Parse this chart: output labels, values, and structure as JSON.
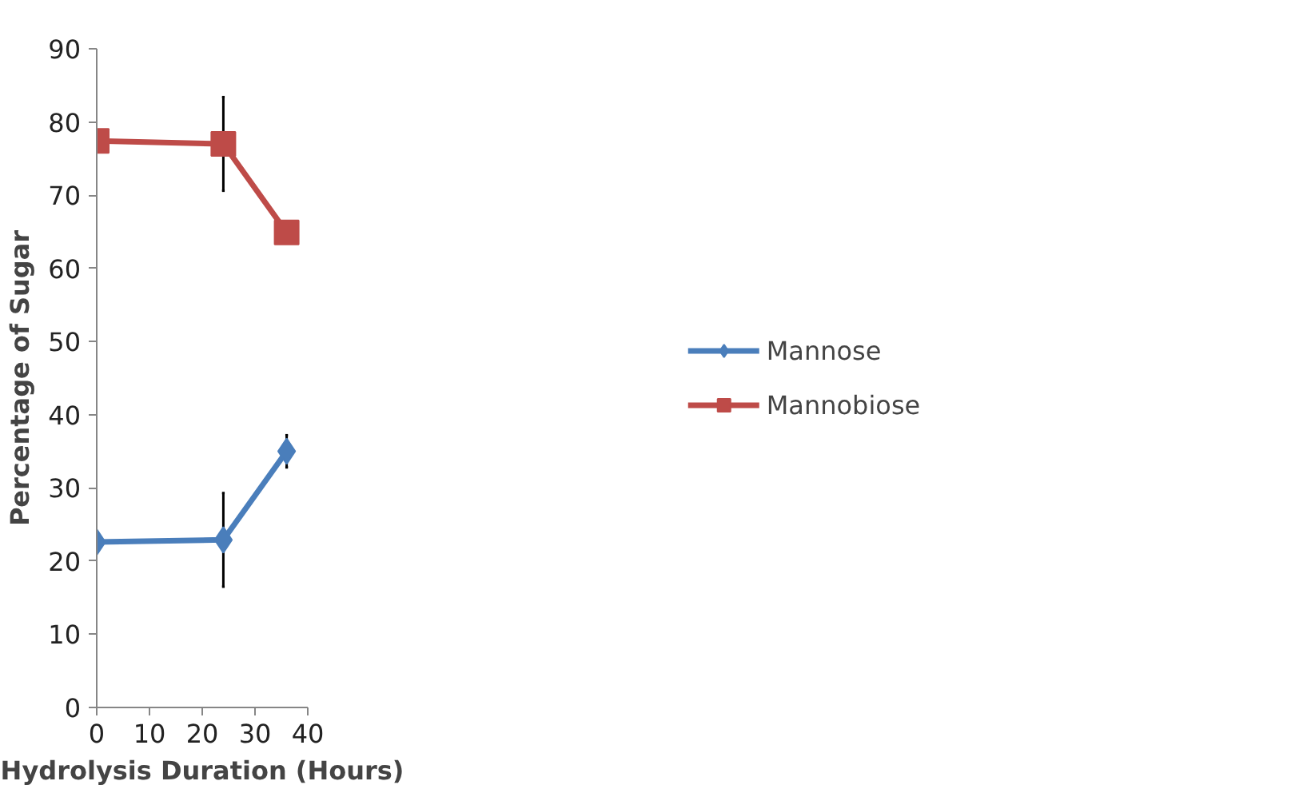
{
  "chart_data": {
    "type": "line",
    "xlabel": "Hydrolysis Duration (Hours)",
    "ylabel": "Percentage of Sugar",
    "x": [
      0,
      24,
      36
    ],
    "series": [
      {
        "name": "Mannose",
        "color": "#4a7ebb",
        "marker": "diamond",
        "values": [
          22.6,
          22.9,
          35.0
        ],
        "errors": [
          1.3,
          6.4,
          2.2
        ]
      },
      {
        "name": "Mannobiose",
        "color": "#be4b48",
        "marker": "square",
        "values": [
          77.4,
          77.0,
          64.9
        ],
        "errors": [
          null,
          6.4,
          null
        ]
      }
    ],
    "xlim": [
      0,
      40
    ],
    "xticks": [
      0,
      10,
      20,
      30,
      40
    ],
    "ylim": [
      0,
      90
    ],
    "yticks": [
      0,
      10,
      20,
      30,
      40,
      50,
      60,
      70,
      80,
      90
    ],
    "grid": false,
    "legend": "right"
  }
}
